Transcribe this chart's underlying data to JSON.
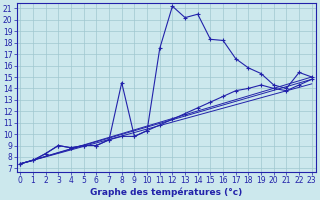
{
  "xlabel": "Graphe des températures (°c)",
  "xlim": [
    -0.3,
    23.3
  ],
  "ylim": [
    6.7,
    21.5
  ],
  "xticks": [
    0,
    1,
    2,
    3,
    4,
    5,
    6,
    7,
    8,
    9,
    10,
    11,
    12,
    13,
    14,
    15,
    16,
    17,
    18,
    19,
    20,
    21,
    22,
    23
  ],
  "yticks": [
    7,
    8,
    9,
    10,
    11,
    12,
    13,
    14,
    15,
    16,
    17,
    18,
    19,
    20,
    21
  ],
  "bg_color": "#cce8ed",
  "line_color": "#2222aa",
  "series_spiky_x": [
    0,
    1,
    2,
    3,
    4,
    5,
    6,
    7,
    8,
    9,
    10,
    11,
    12,
    13,
    14,
    15,
    16,
    17,
    18,
    19,
    20,
    21,
    22,
    23
  ],
  "series_spiky_y": [
    7.4,
    7.7,
    8.3,
    9.0,
    8.8,
    9.0,
    9.0,
    9.5,
    14.5,
    9.8,
    10.3,
    17.5,
    21.2,
    20.2,
    20.5,
    18.3,
    18.2,
    16.6,
    15.8,
    15.3,
    14.3,
    14.0,
    15.4,
    15.0
  ],
  "series_smooth_x": [
    0,
    1,
    2,
    3,
    4,
    5,
    6,
    7,
    8,
    9,
    10,
    11,
    12,
    13,
    14,
    15,
    16,
    17,
    18,
    19,
    20,
    21,
    22,
    23
  ],
  "series_smooth_y": [
    7.4,
    7.7,
    8.3,
    9.0,
    8.8,
    9.0,
    9.0,
    9.5,
    9.8,
    9.8,
    10.3,
    10.8,
    11.3,
    11.8,
    12.3,
    12.8,
    13.3,
    13.8,
    14.0,
    14.3,
    14.0,
    13.8,
    14.3,
    14.8
  ],
  "trend_lines": [
    {
      "x": [
        0,
        23
      ],
      "y": [
        7.4,
        14.8
      ]
    },
    {
      "x": [
        0,
        23
      ],
      "y": [
        7.4,
        14.4
      ]
    },
    {
      "x": [
        0,
        23
      ],
      "y": [
        7.4,
        15.0
      ]
    }
  ],
  "grid_color": "#a0c8d0",
  "tick_fontsize": 5.5,
  "label_fontsize": 6.5,
  "tick_color": "#2222aa",
  "axis_color": "#2222aa"
}
